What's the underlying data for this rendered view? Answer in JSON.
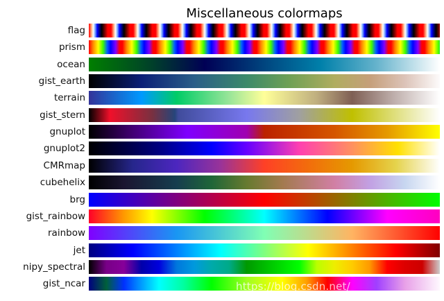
{
  "chart_data": {
    "type": "heatmap",
    "title": "Miscellaneous colormaps",
    "colormaps": [
      {
        "name": "flag",
        "cycles": 15.75,
        "stops": [
          [
            "#ff0000",
            0
          ],
          [
            "#ffb080",
            0.12
          ],
          [
            "#ffffff",
            0.2
          ],
          [
            "#80b0ff",
            0.28
          ],
          [
            "#0000ff",
            0.38
          ],
          [
            "#000060",
            0.5
          ],
          [
            "#000000",
            0.58
          ],
          [
            "#800000",
            0.72
          ],
          [
            "#ff0000",
            0.85
          ],
          [
            "#ff0000",
            1
          ]
        ]
      },
      {
        "name": "prism",
        "cycles": 10.45,
        "stops": [
          [
            "#ff0000",
            0
          ],
          [
            "#ff8000",
            0.12
          ],
          [
            "#ffff00",
            0.28
          ],
          [
            "#40ff00",
            0.42
          ],
          [
            "#0060ff",
            0.55
          ],
          [
            "#0000ff",
            0.65
          ],
          [
            "#8000ff",
            0.8
          ],
          [
            "#ff0000",
            0.92
          ],
          [
            "#ff0000",
            1
          ]
        ]
      },
      {
        "name": "ocean",
        "stops": [
          [
            "#007f00",
            0
          ],
          [
            "#00402a",
            0.18
          ],
          [
            "#000055",
            0.33
          ],
          [
            "#00457f",
            0.5
          ],
          [
            "#0080aa",
            0.66
          ],
          [
            "#66b3cc",
            0.82
          ],
          [
            "#ffffff",
            1
          ]
        ]
      },
      {
        "name": "gist_earth",
        "stops": [
          [
            "#000000",
            0
          ],
          [
            "#0b1f77",
            0.15
          ],
          [
            "#2a5e88",
            0.3
          ],
          [
            "#3c8a6a",
            0.45
          ],
          [
            "#6ea055",
            0.57
          ],
          [
            "#b0ad5f",
            0.7
          ],
          [
            "#c59f7a",
            0.8
          ],
          [
            "#dcc3b8",
            0.9
          ],
          [
            "#fdfbfb",
            1
          ]
        ]
      },
      {
        "name": "terrain",
        "stops": [
          [
            "#333399",
            0
          ],
          [
            "#0099ff",
            0.15
          ],
          [
            "#00cc66",
            0.25
          ],
          [
            "#99e599",
            0.4
          ],
          [
            "#ffff99",
            0.5
          ],
          [
            "#bfae7f",
            0.65
          ],
          [
            "#7f5f54",
            0.75
          ],
          [
            "#bfafac",
            0.87
          ],
          [
            "#ffffff",
            1
          ]
        ]
      },
      {
        "name": "gist_stern",
        "stops": [
          [
            "#000000",
            0
          ],
          [
            "#f0102a",
            0.06
          ],
          [
            "#7a3040",
            0.18
          ],
          [
            "#26457a",
            0.245
          ],
          [
            "#404c9c",
            0.255
          ],
          [
            "#7878ee",
            0.45
          ],
          [
            "#a0a0a0",
            0.6
          ],
          [
            "#c0c000",
            0.75
          ],
          [
            "#ffffff",
            1
          ]
        ]
      },
      {
        "name": "gnuplot",
        "stops": [
          [
            "#000000",
            0
          ],
          [
            "#40006f",
            0.12
          ],
          [
            "#7f00ff",
            0.28
          ],
          [
            "#a000b0",
            0.45
          ],
          [
            "#bb2200",
            0.5
          ],
          [
            "#d55500",
            0.7
          ],
          [
            "#e59900",
            0.85
          ],
          [
            "#ffff00",
            1
          ]
        ]
      },
      {
        "name": "gnuplot2",
        "stops": [
          [
            "#000000",
            0
          ],
          [
            "#000080",
            0.2
          ],
          [
            "#0000ff",
            0.35
          ],
          [
            "#6600ff",
            0.45
          ],
          [
            "#ff40b0",
            0.6
          ],
          [
            "#ff9060",
            0.75
          ],
          [
            "#ffe000",
            0.88
          ],
          [
            "#ffffff",
            1
          ]
        ]
      },
      {
        "name": "CMRmap",
        "stops": [
          [
            "#000000",
            0
          ],
          [
            "#26268c",
            0.125
          ],
          [
            "#4c26bf",
            0.25
          ],
          [
            "#993399",
            0.375
          ],
          [
            "#ff4026",
            0.5
          ],
          [
            "#f26d0c",
            0.625
          ],
          [
            "#e59900",
            0.75
          ],
          [
            "#e5d34c",
            0.875
          ],
          [
            "#ffffff",
            1
          ]
        ]
      },
      {
        "name": "cubehelix",
        "stops": [
          [
            "#000000",
            0
          ],
          [
            "#1a1530",
            0.1
          ],
          [
            "#163d4e",
            0.25
          ],
          [
            "#1f6638",
            0.35
          ],
          [
            "#677a2f",
            0.45
          ],
          [
            "#a27a4e",
            0.55
          ],
          [
            "#d17fa4",
            0.7
          ],
          [
            "#c2a0e3",
            0.8
          ],
          [
            "#c7d6f0",
            0.9
          ],
          [
            "#ffffff",
            1
          ]
        ]
      },
      {
        "name": "brg",
        "stops": [
          [
            "#0000ff",
            0
          ],
          [
            "#ff0000",
            0.5
          ],
          [
            "#00ff00",
            1
          ]
        ]
      },
      {
        "name": "gist_rainbow",
        "stops": [
          [
            "#ff0029",
            0
          ],
          [
            "#ff9900",
            0.1
          ],
          [
            "#ffff00",
            0.18
          ],
          [
            "#00ff00",
            0.33
          ],
          [
            "#00ffff",
            0.5
          ],
          [
            "#0000ff",
            0.68
          ],
          [
            "#ff00ff",
            0.85
          ],
          [
            "#ff00bf",
            1
          ]
        ]
      },
      {
        "name": "rainbow",
        "stops": [
          [
            "#8000ff",
            0
          ],
          [
            "#1996f3",
            0.25
          ],
          [
            "#80ffb4",
            0.5
          ],
          [
            "#ffb462",
            0.75
          ],
          [
            "#ff0000",
            1
          ]
        ]
      },
      {
        "name": "jet",
        "stops": [
          [
            "#000080",
            0
          ],
          [
            "#0000ff",
            0.125
          ],
          [
            "#00ffff",
            0.375
          ],
          [
            "#ffff00",
            0.625
          ],
          [
            "#ff0000",
            0.875
          ],
          [
            "#800000",
            1
          ]
        ]
      },
      {
        "name": "nipy_spectral",
        "stops": [
          [
            "#000000",
            0
          ],
          [
            "#780087",
            0.05
          ],
          [
            "#870099",
            0.1
          ],
          [
            "#0000aa",
            0.15
          ],
          [
            "#0000dd",
            0.2
          ],
          [
            "#0077dd",
            0.25
          ],
          [
            "#0099dd",
            0.3
          ],
          [
            "#00aaaa",
            0.35
          ],
          [
            "#00aa88",
            0.4
          ],
          [
            "#009900",
            0.45
          ],
          [
            "#00bb00",
            0.5
          ],
          [
            "#00dd00",
            0.55
          ],
          [
            "#00ff00",
            0.6
          ],
          [
            "#bbff00",
            0.65
          ],
          [
            "#eeee00",
            0.7
          ],
          [
            "#ffcc00",
            0.75
          ],
          [
            "#ff9900",
            0.8
          ],
          [
            "#ff0000",
            0.85
          ],
          [
            "#dd0000",
            0.9
          ],
          [
            "#cc0000",
            0.95
          ],
          [
            "#cccccc",
            1
          ]
        ]
      },
      {
        "name": "gist_ncar",
        "stops": [
          [
            "#000080",
            0
          ],
          [
            "#00603a",
            0.05
          ],
          [
            "#0030ff",
            0.1
          ],
          [
            "#0088ff",
            0.14
          ],
          [
            "#00ffff",
            0.2
          ],
          [
            "#00ffa0",
            0.27
          ],
          [
            "#00ff00",
            0.35
          ],
          [
            "#a0ff20",
            0.45
          ],
          [
            "#ffff00",
            0.55
          ],
          [
            "#ffa000",
            0.62
          ],
          [
            "#ff0000",
            0.68
          ],
          [
            "#ff00ff",
            0.75
          ],
          [
            "#a040ff",
            0.82
          ],
          [
            "#e8a0e8",
            0.9
          ],
          [
            "#fef8fe",
            1
          ]
        ]
      }
    ]
  },
  "watermark": "https://blog.csdn.net/"
}
